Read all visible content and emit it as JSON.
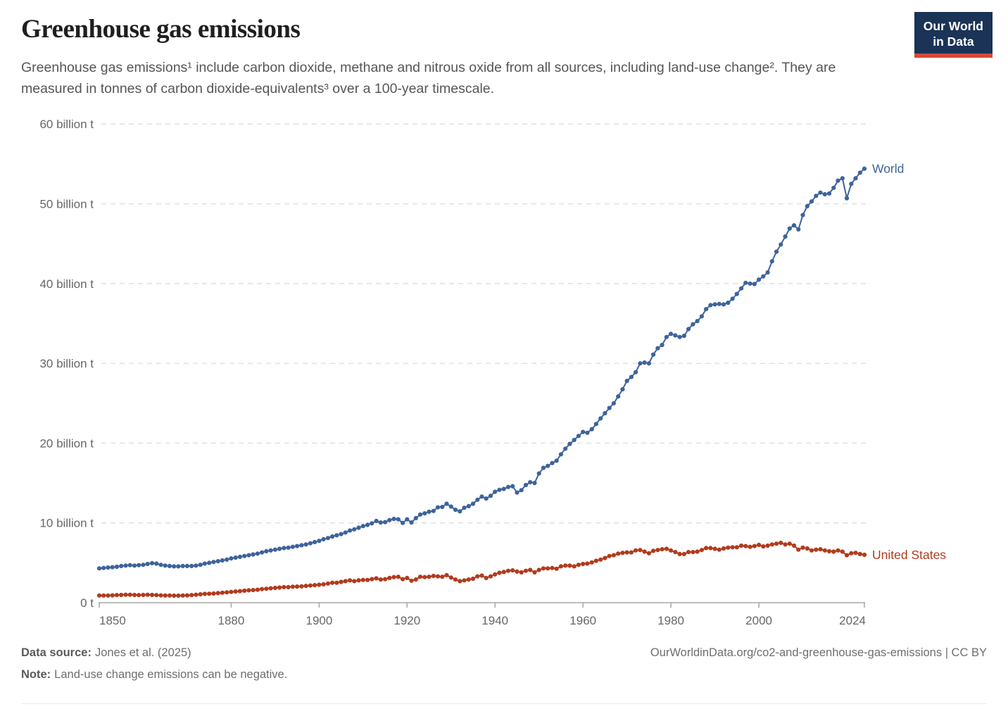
{
  "header": {
    "title": "Greenhouse gas emissions",
    "subtitle": "Greenhouse gas emissions¹ include carbon dioxide, methane and nitrous oxide from all sources, including land-use change². They are measured in tonnes of carbon dioxide-equivalents³ over a 100-year timescale.",
    "logo": {
      "line1": "Our World",
      "line2": "in Data",
      "bg_color": "#1A3356",
      "accent_color": "#D6493A"
    }
  },
  "chart_data": {
    "type": "line",
    "title": "Greenhouse gas emissions",
    "xlabel": "",
    "ylabel": "",
    "xlim": [
      1850,
      2024
    ],
    "ylim": [
      0,
      60
    ],
    "grid": "dashed-horizontal",
    "grid_color": "#dcdcdc",
    "axis_color": "#a5a5a5",
    "tick_text_color": "#666666",
    "legend_position": "end-of-line-labels",
    "xticks": [
      1850,
      1880,
      1900,
      1920,
      1940,
      1960,
      1980,
      2000,
      2024
    ],
    "yticks": [
      {
        "value": 0,
        "label": "0 t"
      },
      {
        "value": 10,
        "label": "10 billion t"
      },
      {
        "value": 20,
        "label": "20 billion t"
      },
      {
        "value": 30,
        "label": "30 billion t"
      },
      {
        "value": 40,
        "label": "40 billion t"
      },
      {
        "value": 50,
        "label": "50 billion t"
      },
      {
        "value": 60,
        "label": "60 billion t"
      }
    ],
    "x_start_year": 1850,
    "x_step_years": 1,
    "marker": "circle",
    "series": [
      {
        "name": "World",
        "color": "#3D639B",
        "values": [
          4.3,
          4.35,
          4.4,
          4.45,
          4.5,
          4.6,
          4.65,
          4.7,
          4.65,
          4.7,
          4.75,
          4.85,
          4.95,
          4.9,
          4.75,
          4.65,
          4.6,
          4.55,
          4.55,
          4.6,
          4.6,
          4.6,
          4.65,
          4.75,
          4.9,
          5.0,
          5.1,
          5.2,
          5.3,
          5.4,
          5.55,
          5.65,
          5.75,
          5.85,
          5.95,
          6.05,
          6.15,
          6.3,
          6.45,
          6.55,
          6.65,
          6.75,
          6.85,
          6.9,
          7.0,
          7.1,
          7.2,
          7.3,
          7.45,
          7.6,
          7.75,
          7.95,
          8.1,
          8.3,
          8.45,
          8.6,
          8.8,
          9.05,
          9.2,
          9.4,
          9.6,
          9.75,
          9.95,
          10.25,
          10.05,
          10.1,
          10.35,
          10.5,
          10.45,
          10.0,
          10.45,
          10.05,
          10.6,
          11.05,
          11.2,
          11.4,
          11.5,
          11.95,
          12.0,
          12.4,
          12.05,
          11.65,
          11.45,
          11.9,
          12.1,
          12.4,
          12.9,
          13.3,
          13.05,
          13.4,
          13.9,
          14.15,
          14.25,
          14.5,
          14.6,
          13.8,
          14.1,
          14.75,
          15.1,
          15.0,
          16.2,
          16.9,
          17.15,
          17.5,
          17.8,
          18.6,
          19.3,
          19.9,
          20.4,
          20.9,
          21.4,
          21.3,
          21.75,
          22.4,
          23.1,
          23.75,
          24.4,
          25.0,
          25.85,
          26.75,
          27.8,
          28.3,
          28.9,
          30.0,
          30.1,
          30.0,
          31.1,
          31.9,
          32.3,
          33.3,
          33.7,
          33.5,
          33.3,
          33.45,
          34.3,
          34.9,
          35.3,
          35.9,
          36.8,
          37.3,
          37.4,
          37.45,
          37.4,
          37.6,
          38.1,
          38.7,
          39.4,
          40.1,
          40.0,
          39.95,
          40.5,
          40.9,
          41.4,
          42.8,
          44.0,
          44.9,
          45.9,
          46.9,
          47.3,
          46.8,
          48.6,
          49.7,
          50.3,
          51.0,
          51.4,
          51.2,
          51.3,
          52.0,
          52.9,
          53.2,
          50.7,
          52.5,
          53.2,
          53.9,
          54.4
        ]
      },
      {
        "name": "United States",
        "color": "#B13B1D",
        "values": [
          0.9,
          0.9,
          0.9,
          0.92,
          0.95,
          0.97,
          1.0,
          1.0,
          0.97,
          0.95,
          0.97,
          1.0,
          0.97,
          0.95,
          0.92,
          0.9,
          0.9,
          0.88,
          0.88,
          0.9,
          0.92,
          0.95,
          1.0,
          1.05,
          1.1,
          1.12,
          1.15,
          1.2,
          1.25,
          1.3,
          1.35,
          1.4,
          1.45,
          1.5,
          1.55,
          1.58,
          1.62,
          1.7,
          1.75,
          1.8,
          1.85,
          1.9,
          1.95,
          1.95,
          2.0,
          2.02,
          2.05,
          2.1,
          2.15,
          2.2,
          2.25,
          2.3,
          2.4,
          2.5,
          2.5,
          2.6,
          2.7,
          2.8,
          2.7,
          2.8,
          2.85,
          2.85,
          2.95,
          3.05,
          2.9,
          2.95,
          3.1,
          3.2,
          3.25,
          2.95,
          3.1,
          2.75,
          2.9,
          3.25,
          3.2,
          3.25,
          3.35,
          3.3,
          3.25,
          3.45,
          3.15,
          2.9,
          2.7,
          2.8,
          2.9,
          3.0,
          3.3,
          3.4,
          3.1,
          3.3,
          3.55,
          3.75,
          3.85,
          4.0,
          4.05,
          3.9,
          3.8,
          4.0,
          4.1,
          3.8,
          4.1,
          4.3,
          4.3,
          4.35,
          4.25,
          4.55,
          4.65,
          4.65,
          4.55,
          4.75,
          4.85,
          4.9,
          5.05,
          5.25,
          5.4,
          5.6,
          5.85,
          5.95,
          6.15,
          6.25,
          6.3,
          6.3,
          6.55,
          6.6,
          6.4,
          6.2,
          6.5,
          6.6,
          6.7,
          6.75,
          6.55,
          6.35,
          6.1,
          6.1,
          6.35,
          6.35,
          6.4,
          6.6,
          6.85,
          6.85,
          6.75,
          6.65,
          6.8,
          6.9,
          6.95,
          6.95,
          7.15,
          7.1,
          7.0,
          7.1,
          7.25,
          7.05,
          7.15,
          7.3,
          7.4,
          7.5,
          7.3,
          7.4,
          7.15,
          6.65,
          6.9,
          6.8,
          6.55,
          6.65,
          6.7,
          6.55,
          6.45,
          6.4,
          6.55,
          6.4,
          5.95,
          6.2,
          6.25,
          6.1,
          6.0
        ]
      }
    ]
  },
  "footer": {
    "source_label": "Data source:",
    "source_value": "Jones et al. (2025)",
    "url": "OurWorldinData.org/co2-and-greenhouse-gas-emissions | CC BY",
    "note_label": "Note:",
    "note_value": "Land-use change emissions can be negative."
  }
}
